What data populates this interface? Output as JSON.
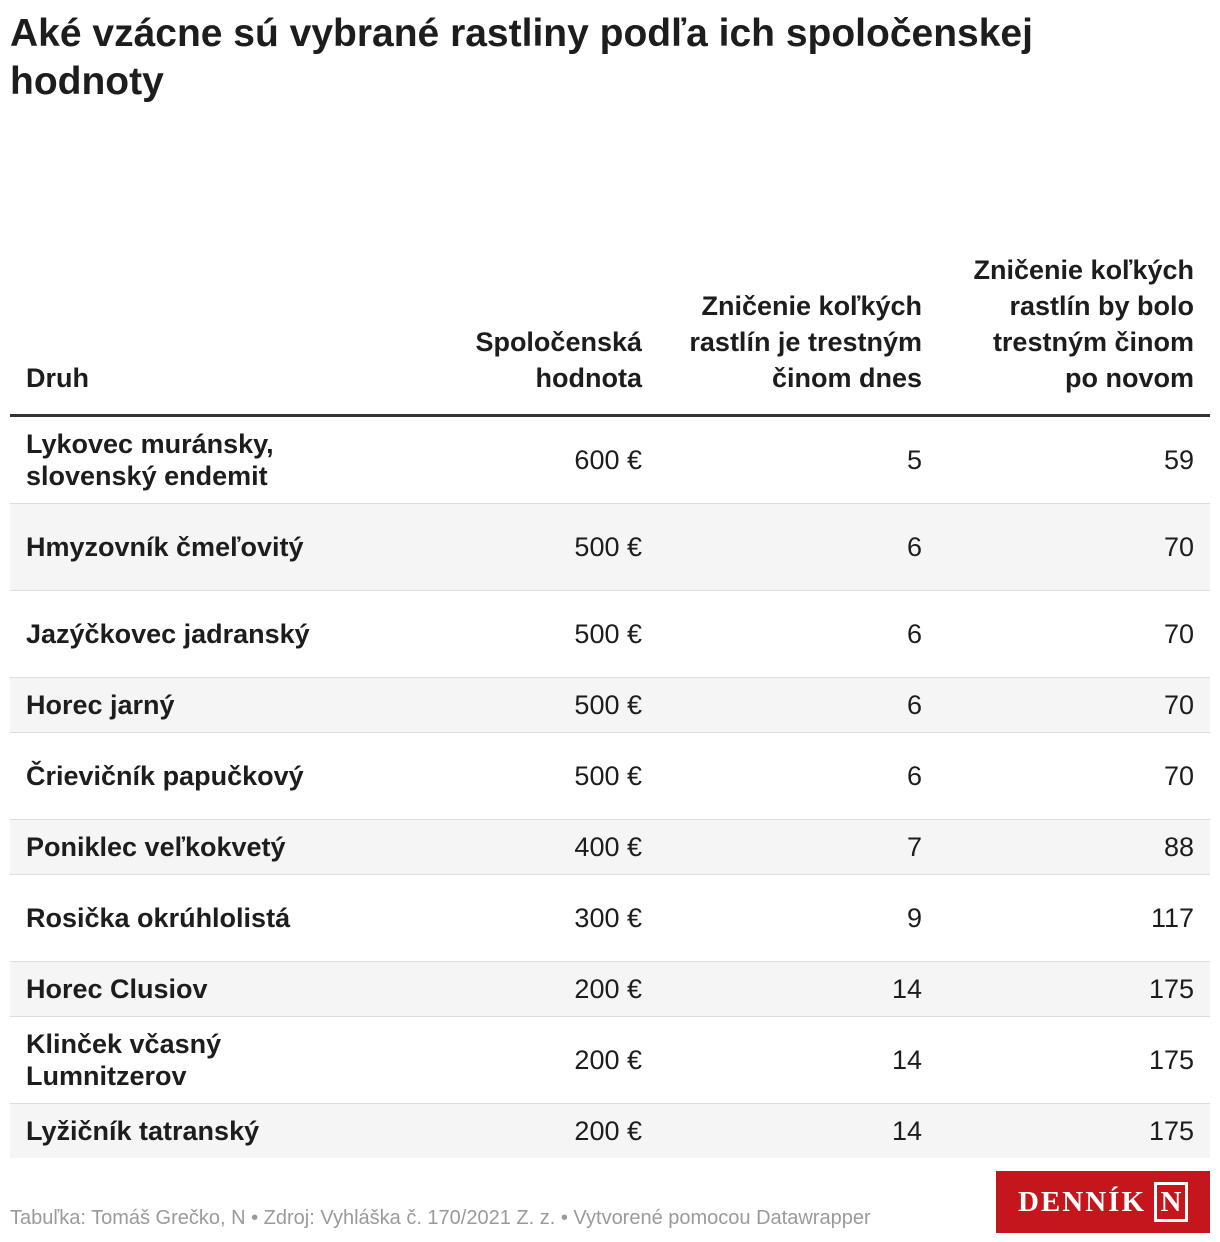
{
  "title": "Aké vzácne sú vybrané rastliny podľa ich spoločenskej hodnoty",
  "table": {
    "headers": [
      "Druh",
      "Spoločenská hodnota",
      "Zničenie koľkých rastlín je trestným činom dnes",
      "Zničenie koľkých rastlín by bolo trestným činom po novom"
    ],
    "rows": [
      {
        "name": "Lykovec muránsky, slovenský endemit",
        "value": "600 €",
        "today": "5",
        "new": "59"
      },
      {
        "name": "Hmyzovník čmeľovitý",
        "value": "500 €",
        "today": "6",
        "new": "70"
      },
      {
        "name": "Jazýčkovec jadranský",
        "value": "500 €",
        "today": "6",
        "new": "70"
      },
      {
        "name": "Horec jarný",
        "value": "500 €",
        "today": "6",
        "new": "70"
      },
      {
        "name": "Črievičník papučkový",
        "value": "500 €",
        "today": "6",
        "new": "70"
      },
      {
        "name": "Poniklec veľkokvetý",
        "value": "400 €",
        "today": "7",
        "new": "88"
      },
      {
        "name": "Rosička okrúhlolistá",
        "value": "300 €",
        "today": "9",
        "new": "117"
      },
      {
        "name": "Horec Clusiov",
        "value": "200 €",
        "today": "14",
        "new": "175"
      },
      {
        "name": "Klinček včasný Lumnitzerov",
        "value": "200 €",
        "today": "14",
        "new": "175"
      },
      {
        "name": "Lyžičník tatranský",
        "value": "200 €",
        "today": "14",
        "new": "175"
      }
    ]
  },
  "footer": "Tabuľka: Tomáš Grečko, N • Zdroj: Vyhláška č. 170/2021 Z. z. • Vytvorené pomocou Datawrapper",
  "logo": {
    "text": "DENNÍK",
    "letter": "N"
  },
  "colors": {
    "brand": "#c4161c",
    "text": "#1d1d1d",
    "muted": "#9a9a9a",
    "row_alt": "#f5f5f5",
    "header_rule": "#333333"
  },
  "chart_data": {
    "type": "table",
    "title": "Aké vzácne sú vybrané rastliny podľa ich spoločenskej hodnoty",
    "columns": [
      "Druh",
      "Spoločenská hodnota",
      "Zničenie koľkých rastlín je trestným činom dnes",
      "Zničenie koľkých rastlín by bolo trestným činom po novom"
    ],
    "rows": [
      [
        "Lykovec muránsky, slovenský endemit",
        600,
        5,
        59
      ],
      [
        "Hmyzovník čmeľovitý",
        500,
        6,
        70
      ],
      [
        "Jazýčkovec jadranský",
        500,
        6,
        70
      ],
      [
        "Horec jarný",
        500,
        6,
        70
      ],
      [
        "Črievičník papučkový",
        500,
        6,
        70
      ],
      [
        "Poniklec veľkokvetý",
        400,
        7,
        88
      ],
      [
        "Rosička okrúhlolistá",
        300,
        9,
        117
      ],
      [
        "Horec Clusiov",
        200,
        14,
        175
      ],
      [
        "Klinček včasný Lumnitzerov",
        200,
        14,
        175
      ],
      [
        "Lyžičník tatranský",
        200,
        14,
        175
      ]
    ]
  }
}
